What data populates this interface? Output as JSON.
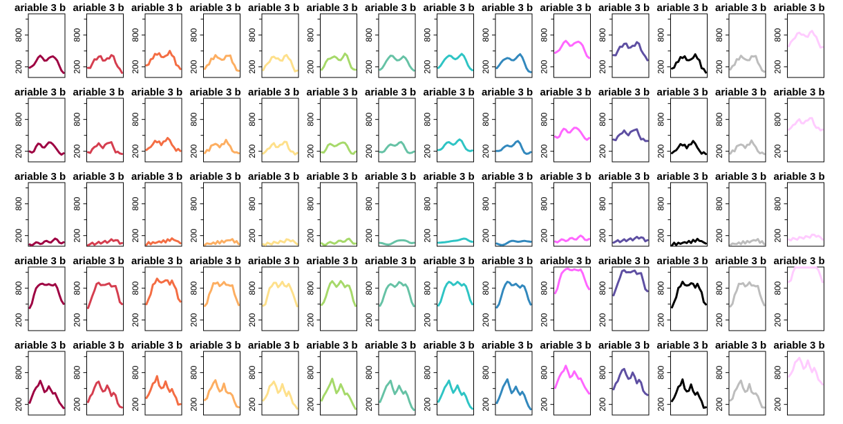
{
  "chart_data": {
    "type": "line",
    "layout": "small-multiples-grid",
    "rows": 5,
    "cols": 14,
    "panel_title": "ariable 3 b",
    "y_ticks": [
      200,
      800
    ],
    "y_tick_labels": [
      "200",
      "800"
    ],
    "ylim": [
      0,
      1200
    ],
    "grid": false,
    "palette": [
      "#9e0142",
      "#d53e4f",
      "#f46d43",
      "#fdae61",
      "#fee08b",
      "#a6d96a",
      "#66c2a5",
      "#2ec4c4",
      "#3288bd",
      "#ff66ff",
      "#5e4fa2",
      "#000000",
      "#bdbdbd",
      "#ffccff"
    ],
    "row_profiles": [
      [
        160,
        200,
        260,
        320,
        360,
        390,
        380,
        340,
        320,
        340,
        380,
        420,
        380,
        300,
        200,
        140,
        110
      ],
      [
        180,
        190,
        220,
        280,
        320,
        330,
        300,
        280,
        300,
        350,
        380,
        350,
        270,
        200,
        170,
        160,
        170
      ],
      [
        40,
        42,
        45,
        50,
        55,
        62,
        70,
        75,
        80,
        85,
        95,
        110,
        120,
        115,
        90,
        70,
        60
      ],
      [
        450,
        520,
        650,
        780,
        860,
        900,
        880,
        840,
        860,
        900,
        870,
        830,
        860,
        820,
        700,
        560,
        480
      ],
      [
        250,
        330,
        420,
        520,
        580,
        650,
        520,
        420,
        480,
        560,
        460,
        380,
        420,
        350,
        240,
        160,
        120
      ]
    ],
    "col_offsets": [
      0,
      0,
      60,
      10,
      0,
      10,
      0,
      20,
      0,
      280,
      240,
      0,
      0,
      450
    ]
  }
}
